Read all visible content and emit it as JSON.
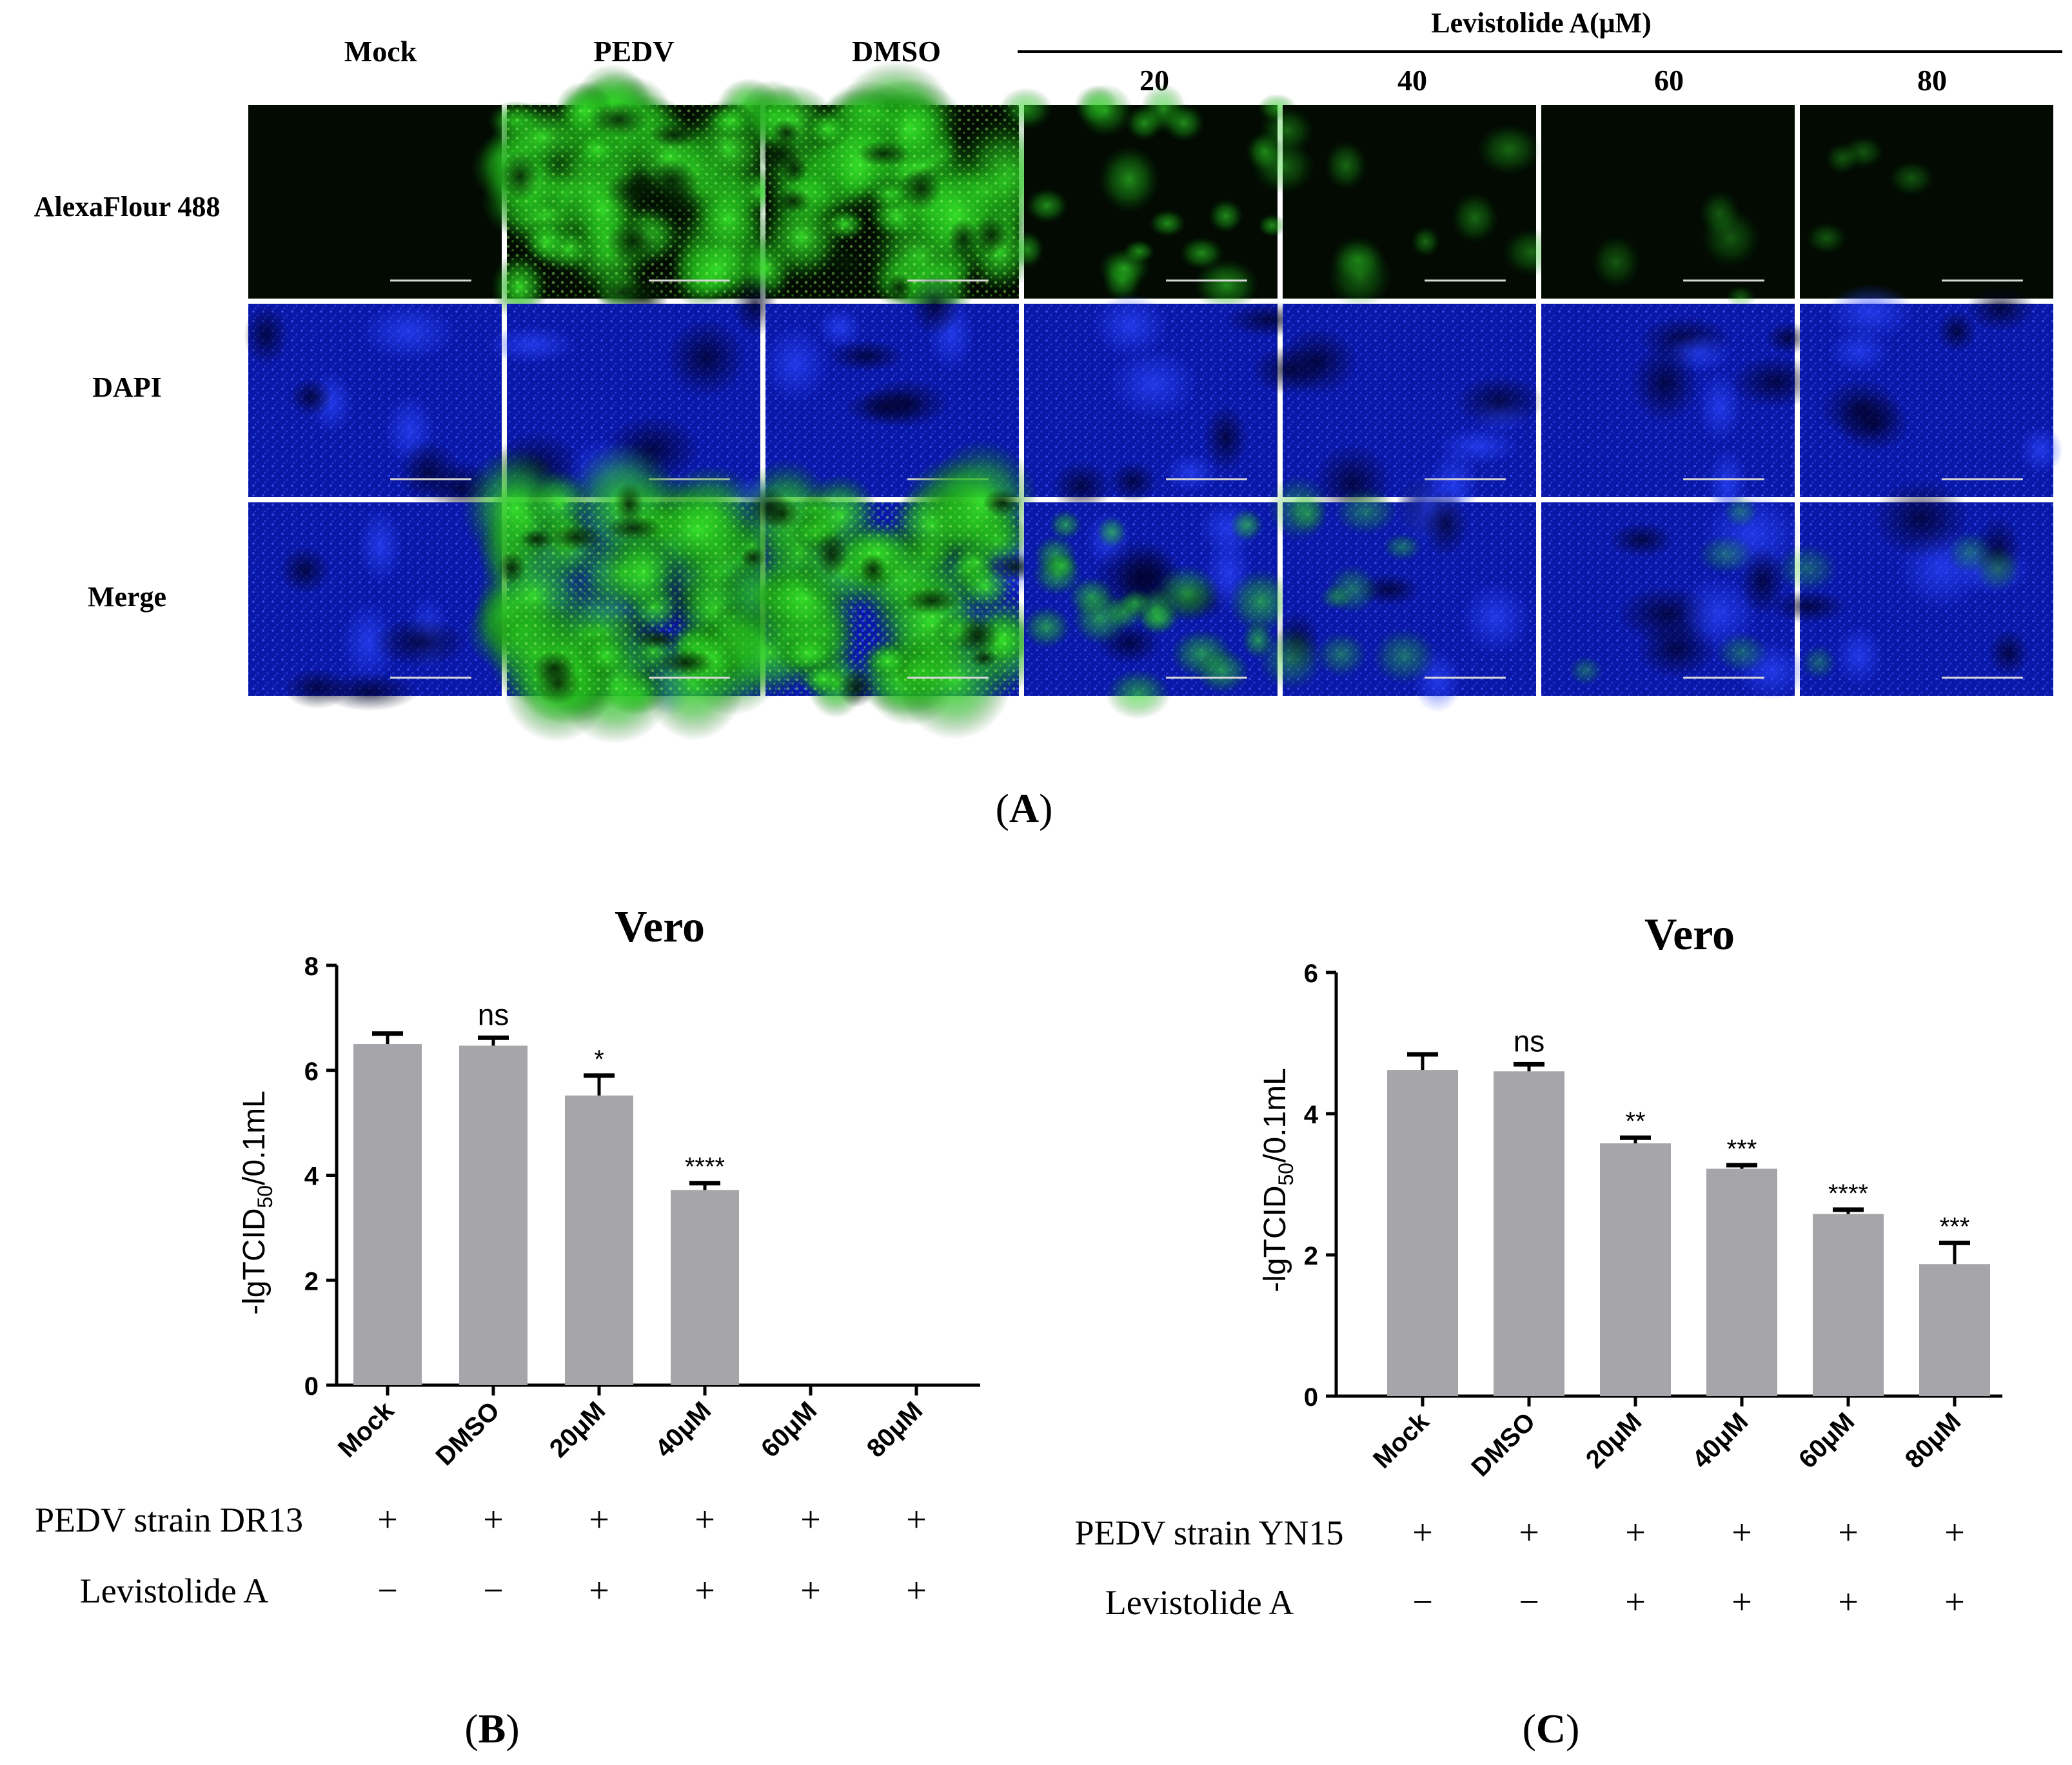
{
  "panel_A": {
    "label": "A",
    "columns": [
      "Mock",
      "PEDV",
      "DMSO",
      "20",
      "40",
      "60",
      "80"
    ],
    "group_header": "Levistolide A(μM)",
    "rows": [
      "AlexaFlour 488",
      "DAPI",
      "Merge"
    ],
    "green_intensity": [
      0.0,
      1.0,
      1.0,
      0.45,
      0.18,
      0.06,
      0.04
    ]
  },
  "chart_data": [
    {
      "panel_label": "B",
      "type": "bar",
      "title": "Vero",
      "ylabel": "-lgTCID50/0.1mL",
      "ylabel_main": "-lgTCID",
      "ylabel_sub": "50",
      "ylabel_tail": "/0.1mL",
      "ylim": [
        0,
        8
      ],
      "yticks": [
        "0",
        "2",
        "4",
        "6",
        "8"
      ],
      "categories": [
        "Mock",
        "DMSO",
        "20μM",
        "40μM",
        "60μM",
        "80μM"
      ],
      "values": [
        6.5,
        6.47,
        5.52,
        3.72,
        0,
        0
      ],
      "errors": [
        0.2,
        0.15,
        0.38,
        0.13,
        0,
        0
      ],
      "significance": [
        "",
        "ns",
        "*",
        "****",
        "",
        ""
      ],
      "bar_color": "#a6a6aa",
      "conditions": [
        {
          "name": "PEDV strain DR13",
          "marks": [
            "+",
            "+",
            "+",
            "+",
            "+",
            "+"
          ]
        },
        {
          "name": "Levistolide  A",
          "marks": [
            "−",
            "−",
            "+",
            "+",
            "+",
            "+"
          ]
        }
      ]
    },
    {
      "panel_label": "C",
      "type": "bar",
      "title": "Vero",
      "ylabel": "-lgTCID50/0.1mL",
      "ylabel_main": "-lgTCID",
      "ylabel_sub": "50",
      "ylabel_tail": "/0.1mL",
      "ylim": [
        0,
        6
      ],
      "yticks": [
        "0",
        "2",
        "4",
        "6"
      ],
      "categories": [
        "Mock",
        "DMSO",
        "20μM",
        "40μM",
        "60μM",
        "80μM"
      ],
      "values": [
        4.62,
        4.6,
        3.58,
        3.22,
        2.58,
        1.87
      ],
      "errors": [
        0.22,
        0.1,
        0.08,
        0.05,
        0.06,
        0.3
      ],
      "significance": [
        "",
        "ns",
        "**",
        "***",
        "****",
        "***"
      ],
      "bar_color": "#a6a6aa",
      "conditions": [
        {
          "name": "PEDV strain YN15",
          "marks": [
            "+",
            "+",
            "+",
            "+",
            "+",
            "+"
          ]
        },
        {
          "name": "Levistolide  A",
          "marks": [
            "−",
            "−",
            "+",
            "+",
            "+",
            "+"
          ]
        }
      ]
    }
  ]
}
